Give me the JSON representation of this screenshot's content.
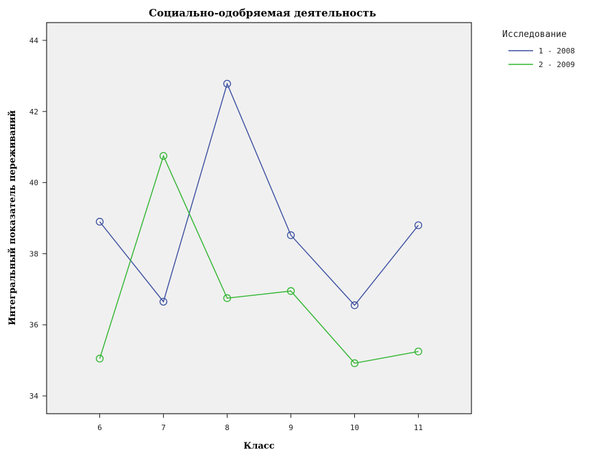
{
  "chart_data": {
    "type": "line",
    "title": "Социально-одобряемая деятельность",
    "xlabel": "Класс",
    "ylabel": "Интегральный показатель переживаний",
    "categories": [
      "6",
      "7",
      "8",
      "9",
      "10",
      "11"
    ],
    "yticks": [
      "34",
      "36",
      "38",
      "40",
      "42",
      "44"
    ],
    "ylim": [
      33.5,
      44.5
    ],
    "grid": false,
    "legend": {
      "title": "Исследование",
      "placement": "right"
    },
    "series": [
      {
        "name": "1 - 2008",
        "color": "#3b4fa0",
        "values": [
          38.9,
          36.65,
          42.78,
          38.52,
          36.55,
          38.8
        ]
      },
      {
        "name": "2 - 2009",
        "color": "#2fb52f",
        "values": [
          35.05,
          40.75,
          36.75,
          36.95,
          34.92,
          35.25
        ]
      }
    ],
    "colors": {
      "plot_background": "#f0f0f0",
      "axis": "#222222"
    }
  }
}
